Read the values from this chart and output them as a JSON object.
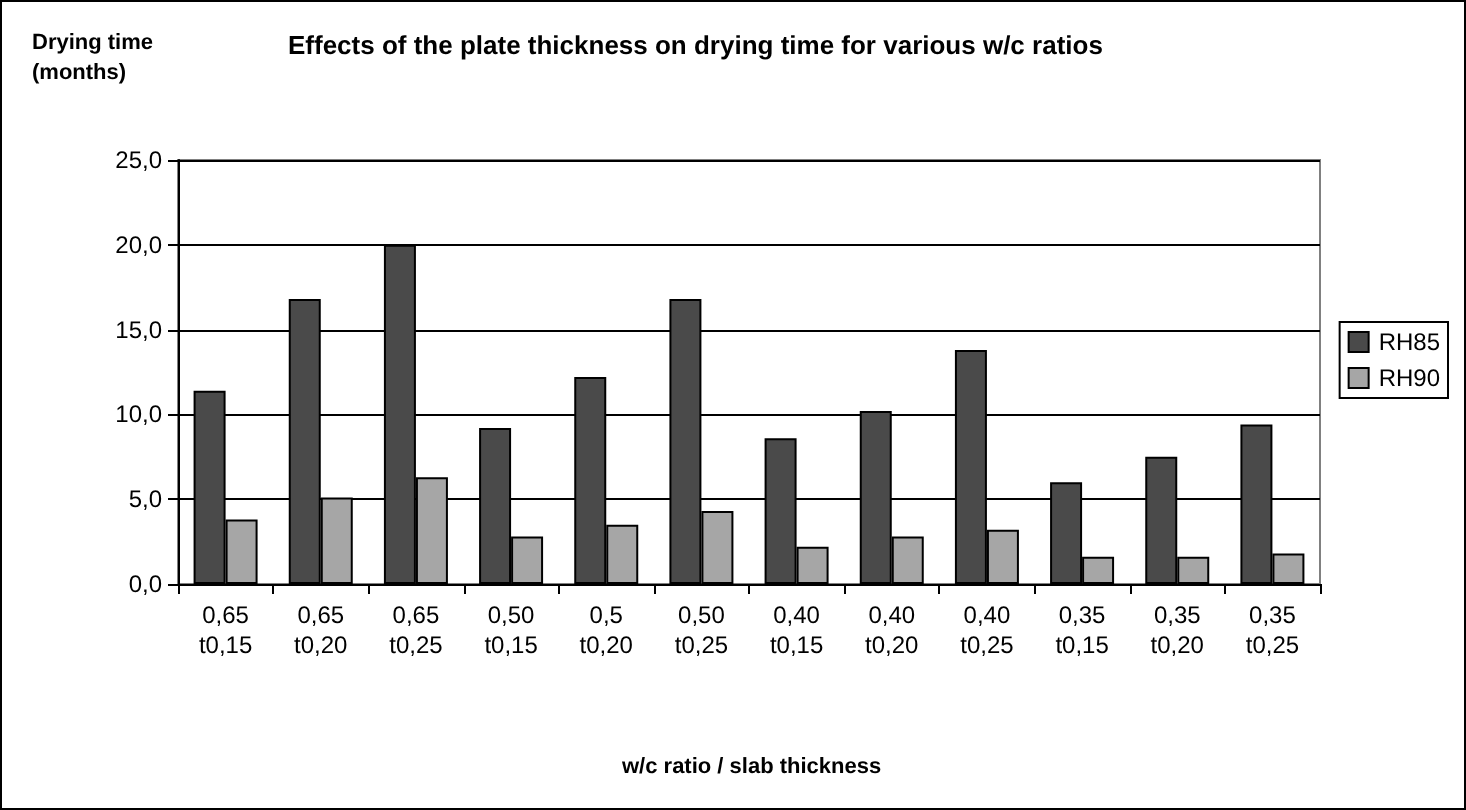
{
  "chart_data": {
    "type": "bar",
    "title": "Effects of the plate thickness on drying time for various w/c ratios",
    "ylabel": "Drying time\n(months)",
    "xlabel": "w/c ratio / slab thickness",
    "categories": [
      "0,65\nt0,15",
      "0,65\nt0,20",
      "0,65\nt0,25",
      "0,50\nt0,15",
      "0,5\nt0,20",
      "0,50\nt0,25",
      "0,40\nt0,15",
      "0,40\nt0,20",
      "0,40\nt0,25",
      "0,35\nt0,15",
      "0,35\nt0,20",
      "0,35\nt0,25"
    ],
    "series": [
      {
        "name": "RH85",
        "color": "#4a4a4a",
        "values": [
          11.4,
          16.8,
          20.0,
          9.2,
          12.2,
          16.8,
          8.6,
          10.2,
          13.8,
          6.0,
          7.5,
          9.4
        ]
      },
      {
        "name": "RH90",
        "color": "#a6a6a6",
        "values": [
          3.8,
          5.1,
          6.3,
          2.8,
          3.5,
          4.3,
          2.2,
          2.8,
          3.2,
          1.6,
          1.6,
          1.8
        ]
      }
    ],
    "ylim": [
      0,
      25
    ],
    "yticks": [
      {
        "value": 0,
        "label": "0,0"
      },
      {
        "value": 5,
        "label": "5,0"
      },
      {
        "value": 10,
        "label": "10,0"
      },
      {
        "value": 15,
        "label": "15,0"
      },
      {
        "value": 20,
        "label": "20,0"
      },
      {
        "value": 25,
        "label": "25,0"
      }
    ],
    "grid": "y",
    "legend": "right"
  }
}
